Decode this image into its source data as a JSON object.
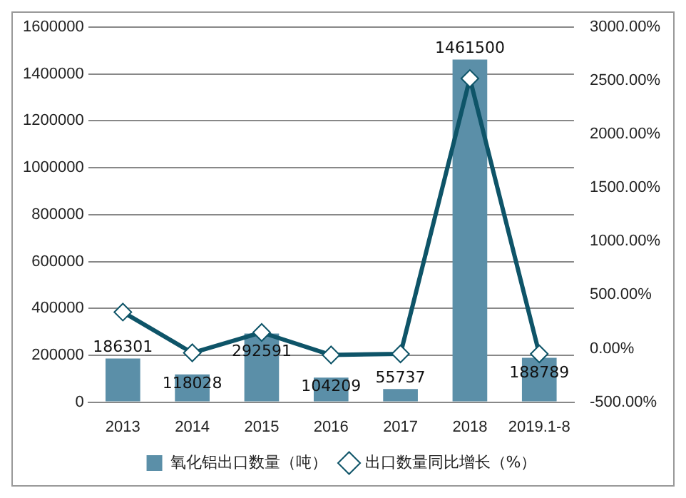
{
  "chart_data": {
    "type": "bar",
    "categories": [
      "2013",
      "2014",
      "2015",
      "2016",
      "2017",
      "2018",
      "2019.1-8"
    ],
    "series": [
      {
        "name": "氧化铝出口数量（吨）",
        "color": "#5b8fa8",
        "values": [
          186301,
          118028,
          292591,
          104209,
          55737,
          1461500,
          188789
        ],
        "value_labels": [
          "186301",
          "118028",
          "292591",
          "104209",
          "55737",
          "1461500",
          "188789"
        ]
      },
      {
        "name": "出口数量同比增长（%）",
        "type": "line",
        "axis": "y2",
        "color": "#0e5468",
        "marker": "diamond",
        "values": [
          340,
          -40,
          150,
          -60,
          -50,
          2520,
          -50
        ]
      }
    ],
    "ylim": [
      0,
      1600000
    ],
    "yticks": [
      0,
      200000,
      400000,
      600000,
      800000,
      1000000,
      1200000,
      1400000,
      1600000
    ],
    "y2lim": [
      -500,
      3000
    ],
    "y2ticks": [
      {
        "value": -500,
        "label": "-500.00%"
      },
      {
        "value": 0,
        "label": "0.00%"
      },
      {
        "value": 500,
        "label": "500.00%"
      },
      {
        "value": 1000,
        "label": "1000.00%"
      },
      {
        "value": 1500,
        "label": "1500.00%"
      },
      {
        "value": 2000,
        "label": "2000.00%"
      },
      {
        "value": 2500,
        "label": "2500.00%"
      },
      {
        "value": 3000,
        "label": "3000.00%"
      }
    ],
    "grid": "y",
    "legend": "bottom"
  }
}
